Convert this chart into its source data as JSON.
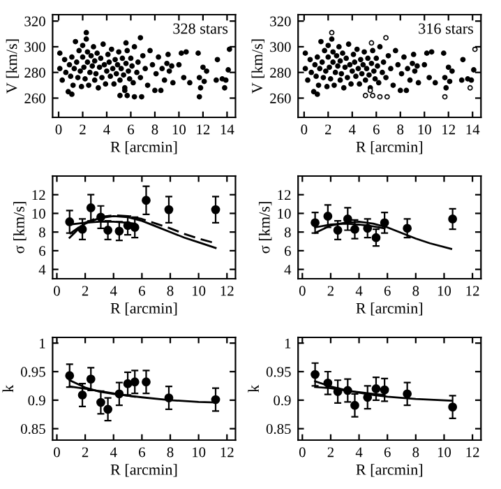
{
  "chart_data": [
    {
      "type": "scatter",
      "xlabel": "R [arcmin]",
      "ylabel": "V [km/s]",
      "annotations": [
        "328 stars"
      ],
      "xlim": [
        -0.5,
        14.7
      ],
      "ylim": [
        245,
        325
      ],
      "xticks": [
        0,
        2,
        4,
        6,
        8,
        10,
        12,
        14
      ],
      "yticks": [
        260,
        280,
        300,
        320
      ],
      "marker": "circle",
      "series": [
        {
          "color": "#000000",
          "x": [
            0.1,
            0.1,
            0.3,
            0.5,
            0.6,
            0.8,
            0.9,
            1.0,
            1.1,
            1.1,
            1.2,
            1.3,
            1.4,
            1.5,
            1.6,
            1.7,
            1.8,
            1.9,
            2.0,
            2.0,
            2.1,
            2.2,
            2.3,
            2.4,
            2.4,
            2.5,
            2.6,
            2.7,
            2.8,
            2.9,
            3.0,
            3.0,
            3.1,
            3.2,
            3.3,
            3.4,
            3.5,
            3.6,
            3.7,
            3.8,
            3.9,
            4.0,
            4.1,
            4.2,
            4.3,
            4.4,
            4.5,
            4.6,
            4.7,
            4.8,
            4.9,
            5.0,
            5.1,
            5.2,
            5.3,
            5.4,
            5.5,
            5.6,
            5.7,
            5.8,
            5.9,
            6.0,
            6.1,
            6.2,
            6.3,
            6.5,
            6.6,
            6.8,
            7.0,
            7.2,
            7.4,
            7.6,
            7.8,
            8.0,
            8.1,
            8.3,
            8.5,
            8.6,
            8.8,
            9.0,
            9.1,
            9.2,
            9.4,
            9.5,
            10.0,
            10.2,
            10.4,
            10.6,
            10.9,
            11.6,
            11.7,
            11.8,
            12.0,
            12.1,
            12.3,
            13.1,
            13.2,
            13.6,
            13.9,
            14.1,
            2.3,
            5.1,
            5.5,
            5.7,
            6.3,
            6.9,
            6.8,
            5.6,
            11.7,
            13.8,
            14.2
          ],
          "values": [
            295,
            283,
            274,
            290,
            280,
            265,
            286,
            277,
            263,
            292,
            270,
            283,
            304,
            288,
            276,
            297,
            281,
            269,
            292,
            301,
            284,
            275,
            306,
            288,
            296,
            270,
            280,
            293,
            285,
            300,
            274,
            289,
            279,
            295,
            268,
            284,
            291,
            276,
            302,
            286,
            271,
            281,
            294,
            288,
            277,
            298,
            283,
            271,
            290,
            279,
            286,
            296,
            274,
            283,
            291,
            278,
            268,
            287,
            297,
            281,
            275,
            291,
            285,
            272,
            300,
            280,
            288,
            276,
            293,
            283,
            270,
            297,
            286,
            266,
            279,
            292,
            266,
            283,
            274,
            287,
            294,
            281,
            285,
            272,
            286,
            295,
            276,
            296,
            272,
            295,
            276,
            268,
            284,
            273,
            281,
            274,
            290,
            275,
            274,
            282,
            311,
            262,
            266,
            262,
            261,
            261,
            307,
            303,
            261,
            268,
            298
          ]
        }
      ]
    },
    {
      "type": "scatter",
      "xlabel": "R [arcmin]",
      "ylabel": "V [km/s]",
      "annotations": [
        "316 stars"
      ],
      "xlim": [
        -0.5,
        14.7
      ],
      "ylim": [
        245,
        325
      ],
      "xticks": [
        0,
        2,
        4,
        6,
        8,
        10,
        12,
        14
      ],
      "yticks": [
        260,
        280,
        300,
        320
      ],
      "marker": "circle",
      "series": [
        {
          "color": "#000000",
          "x": [
            0.1,
            0.1,
            0.3,
            0.5,
            0.6,
            0.8,
            0.9,
            1.0,
            1.1,
            1.1,
            1.2,
            1.3,
            1.4,
            1.5,
            1.6,
            1.7,
            1.8,
            1.9,
            2.0,
            2.0,
            2.1,
            2.2,
            2.3,
            2.4,
            2.4,
            2.5,
            2.6,
            2.7,
            2.8,
            2.9,
            3.0,
            3.0,
            3.1,
            3.2,
            3.3,
            3.4,
            3.5,
            3.6,
            3.7,
            3.8,
            3.9,
            4.0,
            4.1,
            4.2,
            4.3,
            4.4,
            4.5,
            4.6,
            4.7,
            4.8,
            4.9,
            5.0,
            5.1,
            5.2,
            5.3,
            5.4,
            5.5,
            5.6,
            5.7,
            5.8,
            5.9,
            6.0,
            6.1,
            6.2,
            6.3,
            6.5,
            6.6,
            6.8,
            7.0,
            7.2,
            7.4,
            7.6,
            7.8,
            8.0,
            8.1,
            8.3,
            8.5,
            8.6,
            8.8,
            9.0,
            9.1,
            9.2,
            9.4,
            9.5,
            10.0,
            10.2,
            10.4,
            10.6,
            10.9,
            11.6,
            11.7,
            11.8,
            12.0,
            12.1,
            12.3,
            13.1,
            13.2,
            13.6,
            13.9,
            14.1
          ],
          "values": [
            295,
            283,
            274,
            290,
            280,
            265,
            286,
            277,
            263,
            292,
            270,
            283,
            304,
            288,
            276,
            297,
            281,
            269,
            292,
            301,
            284,
            275,
            306,
            288,
            296,
            270,
            280,
            293,
            285,
            300,
            274,
            289,
            279,
            295,
            268,
            284,
            291,
            276,
            302,
            286,
            271,
            281,
            294,
            288,
            277,
            298,
            283,
            271,
            290,
            279,
            286,
            296,
            274,
            283,
            291,
            278,
            268,
            287,
            297,
            281,
            275,
            291,
            285,
            272,
            300,
            280,
            288,
            276,
            293,
            283,
            270,
            297,
            286,
            266,
            279,
            292,
            266,
            283,
            274,
            287,
            294,
            281,
            285,
            272,
            286,
            295,
            276,
            296,
            272,
            295,
            276,
            268,
            284,
            273,
            281,
            274,
            290,
            275,
            274,
            282
          ]
        },
        {
          "color": "#ffffff",
          "x": [
            2.3,
            5.1,
            5.5,
            5.7,
            6.3,
            6.9,
            6.8,
            5.6,
            11.7,
            13.8,
            14.2
          ],
          "values": [
            311,
            262,
            266,
            262,
            261,
            261,
            307,
            303,
            261,
            268,
            298
          ]
        }
      ]
    },
    {
      "type": "scatter",
      "xlabel": "R [arcmin]",
      "ylabel": "σ [km/s]",
      "xlim": [
        -0.3,
        12.6
      ],
      "ylim": [
        3,
        14
      ],
      "xticks": [
        0,
        2,
        4,
        6,
        8,
        10,
        12
      ],
      "yticks": [
        4,
        6,
        8,
        10,
        12
      ],
      "marker": "circle",
      "series": [
        {
          "color": "#000000",
          "x": [
            0.9,
            1.8,
            2.4,
            3.1,
            3.6,
            4.4,
            5.0,
            5.5,
            6.3,
            7.9,
            11.2
          ],
          "values": [
            9.1,
            8.3,
            10.6,
            9.6,
            8.2,
            8.1,
            8.7,
            8.5,
            11.4,
            10.4,
            10.4
          ],
          "errors": [
            1.2,
            1.1,
            1.4,
            1.2,
            1.0,
            1.0,
            1.0,
            1.1,
            1.5,
            1.4,
            1.4
          ]
        },
        {
          "type": "line",
          "marker": "none",
          "color": "#000000",
          "line_style": "solid",
          "x": [
            0.9,
            1.5,
            2,
            3,
            4,
            5,
            6,
            7,
            8,
            9,
            10,
            11.2
          ],
          "values": [
            7.4,
            8.3,
            8.9,
            9.5,
            9.7,
            9.6,
            9.2,
            8.6,
            8.0,
            7.4,
            6.9,
            6.3
          ]
        },
        {
          "type": "line",
          "marker": "none",
          "color": "#000000",
          "line_style": "dashed",
          "x": [
            0.9,
            2,
            3,
            4,
            5,
            6,
            7,
            8,
            9,
            10,
            11.2
          ],
          "values": [
            7.8,
            9.0,
            9.6,
            9.8,
            9.7,
            9.4,
            8.9,
            8.4,
            7.8,
            7.3,
            6.8
          ]
        },
        {
          "type": "line",
          "marker": "none",
          "color": "#000000",
          "line_style": "solid",
          "x": [
            0.9,
            2,
            3,
            4,
            5,
            5.5
          ],
          "values": [
            8.8,
            9.0,
            9.1,
            9.1,
            9.0,
            8.9
          ]
        }
      ]
    },
    {
      "type": "scatter",
      "xlabel": "R [arcmin]",
      "ylabel": "σ [km/s]",
      "xlim": [
        -0.3,
        12.6
      ],
      "ylim": [
        3,
        14
      ],
      "xticks": [
        0,
        2,
        4,
        6,
        8,
        10,
        12
      ],
      "yticks": [
        4,
        6,
        8,
        10,
        12
      ],
      "marker": "circle",
      "series": [
        {
          "color": "#000000",
          "x": [
            0.9,
            1.8,
            2.5,
            3.2,
            3.7,
            4.6,
            5.2,
            5.8,
            7.4,
            10.6
          ],
          "values": [
            9.0,
            9.7,
            8.2,
            9.4,
            8.3,
            8.4,
            7.4,
            9.0,
            8.4,
            9.4
          ],
          "errors": [
            1.1,
            1.2,
            1.0,
            1.2,
            1.0,
            1.0,
            0.9,
            1.1,
            1.0,
            1.1
          ]
        },
        {
          "type": "line",
          "marker": "none",
          "color": "#000000",
          "line_style": "solid",
          "x": [
            0.9,
            2,
            3,
            4,
            5,
            6,
            7,
            8,
            9,
            10.5
          ],
          "values": [
            7.9,
            8.7,
            9.0,
            9.1,
            8.9,
            8.5,
            7.9,
            7.3,
            6.8,
            6.2
          ]
        },
        {
          "type": "line",
          "marker": "none",
          "color": "#000000",
          "line_style": "solid",
          "x": [
            0.9,
            2,
            3,
            4,
            5,
            5.8
          ],
          "values": [
            8.5,
            8.8,
            8.9,
            8.8,
            8.6,
            8.4
          ]
        }
      ]
    },
    {
      "type": "scatter",
      "xlabel": "R [arcmin]",
      "ylabel": "k",
      "xlim": [
        -0.3,
        12.6
      ],
      "ylim": [
        0.83,
        1.01
      ],
      "xticks": [
        0,
        2,
        4,
        6,
        8,
        10,
        12
      ],
      "yticks": [
        0.85,
        0.9,
        0.95,
        1
      ],
      "marker": "circle",
      "series": [
        {
          "color": "#000000",
          "x": [
            0.9,
            1.8,
            2.4,
            3.1,
            3.6,
            4.4,
            5.0,
            5.5,
            6.3,
            7.9,
            11.2
          ],
          "values": [
            0.943,
            0.909,
            0.937,
            0.896,
            0.884,
            0.911,
            0.929,
            0.932,
            0.932,
            0.904,
            0.901
          ],
          "errors": [
            0.02,
            0.02,
            0.02,
            0.02,
            0.02,
            0.02,
            0.02,
            0.02,
            0.02,
            0.02,
            0.02
          ]
        },
        {
          "type": "line",
          "marker": "none",
          "color": "#000000",
          "line_style": "solid",
          "x": [
            0.9,
            2,
            3,
            4,
            5,
            6,
            8,
            10,
            11.2
          ],
          "values": [
            0.935,
            0.922,
            0.915,
            0.911,
            0.908,
            0.905,
            0.9,
            0.897,
            0.896
          ]
        },
        {
          "type": "line",
          "marker": "none",
          "color": "#000000",
          "line_style": "solid",
          "x": [
            0.9,
            2,
            3,
            4,
            5,
            5.5
          ],
          "values": [
            0.924,
            0.92,
            0.916,
            0.912,
            0.908,
            0.906
          ]
        }
      ]
    },
    {
      "type": "scatter",
      "xlabel": "R [arcmin]",
      "ylabel": "k",
      "xlim": [
        -0.3,
        12.6
      ],
      "ylim": [
        0.83,
        1.01
      ],
      "xticks": [
        0,
        2,
        4,
        6,
        8,
        10,
        12
      ],
      "yticks": [
        0.85,
        0.9,
        0.95,
        1
      ],
      "marker": "circle",
      "series": [
        {
          "color": "#000000",
          "x": [
            0.9,
            1.8,
            2.5,
            3.2,
            3.7,
            4.6,
            5.2,
            5.8,
            7.4,
            10.6
          ],
          "values": [
            0.945,
            0.93,
            0.915,
            0.917,
            0.891,
            0.905,
            0.92,
            0.918,
            0.911,
            0.888
          ],
          "errors": [
            0.02,
            0.02,
            0.02,
            0.02,
            0.02,
            0.02,
            0.02,
            0.02,
            0.02,
            0.02
          ]
        },
        {
          "type": "line",
          "marker": "none",
          "color": "#000000",
          "line_style": "solid",
          "x": [
            0.9,
            2,
            3,
            4,
            5,
            6,
            8,
            10.5
          ],
          "values": [
            0.933,
            0.924,
            0.918,
            0.913,
            0.909,
            0.906,
            0.902,
            0.899
          ]
        },
        {
          "type": "line",
          "marker": "none",
          "color": "#000000",
          "line_style": "solid",
          "x": [
            0.9,
            2,
            3,
            4,
            5,
            5.8
          ],
          "values": [
            0.923,
            0.921,
            0.917,
            0.914,
            0.911,
            0.909
          ]
        }
      ]
    }
  ]
}
